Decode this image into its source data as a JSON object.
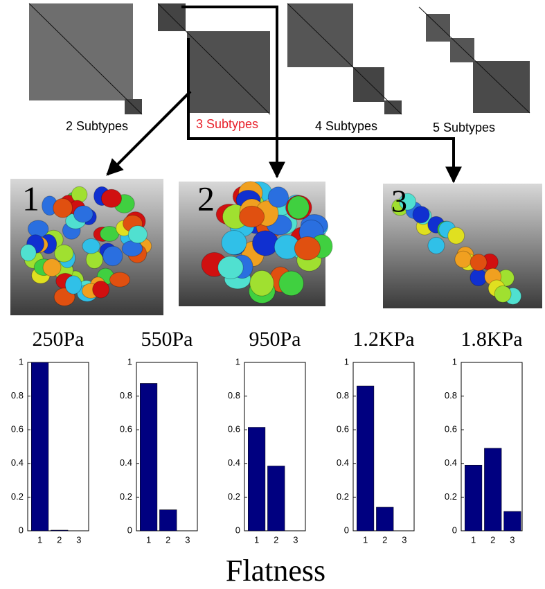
{
  "matrix_labels": [
    "2 Subtypes",
    "3 Subtypes",
    "4 Subtypes",
    "5 Subtypes"
  ],
  "cluster_labels": [
    "1",
    "2",
    "3"
  ],
  "xlabel": "Flatness",
  "chart_data": [
    {
      "type": "bar",
      "title": "250Pa",
      "categories": [
        "1",
        "2",
        "3"
      ],
      "values": [
        1,
        0.004,
        0
      ],
      "color": "#000080",
      "ylim": [
        0,
        1
      ],
      "yticks": [
        0,
        0.2,
        0.4,
        0.6,
        0.8,
        1
      ]
    },
    {
      "type": "bar",
      "title": "550Pa",
      "categories": [
        "1",
        "2",
        "3"
      ],
      "values": [
        0.875,
        0.125,
        0
      ],
      "color": "#000080",
      "ylim": [
        0,
        1
      ],
      "yticks": [
        0,
        0.2,
        0.4,
        0.6,
        0.8,
        1
      ]
    },
    {
      "type": "bar",
      "title": "950Pa",
      "categories": [
        "1",
        "2",
        "3"
      ],
      "values": [
        0.615,
        0.385,
        0
      ],
      "color": "#000080",
      "ylim": [
        0,
        1
      ],
      "yticks": [
        0,
        0.2,
        0.4,
        0.6,
        0.8,
        1
      ]
    },
    {
      "type": "bar",
      "title": "1.2KPa",
      "categories": [
        "1",
        "2",
        "3"
      ],
      "values": [
        0.86,
        0.14,
        0
      ],
      "color": "#000080",
      "ylim": [
        0,
        1
      ],
      "yticks": [
        0,
        0.2,
        0.4,
        0.6,
        0.8,
        1
      ]
    },
    {
      "type": "bar",
      "title": "1.8KPa",
      "categories": [
        "1",
        "2",
        "3"
      ],
      "values": [
        0.39,
        0.49,
        0.115
      ],
      "color": "#000080",
      "ylim": [
        0,
        1
      ],
      "yticks": [
        0,
        0.2,
        0.4,
        0.6,
        0.8,
        1
      ]
    }
  ]
}
